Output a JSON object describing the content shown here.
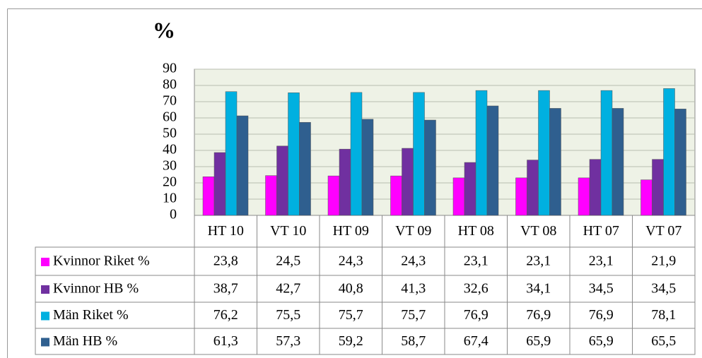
{
  "chart_data": {
    "type": "bar",
    "title": "%",
    "categories": [
      "HT 10",
      "VT 10",
      "HT 09",
      "VT 09",
      "HT 08",
      "VT 08",
      "HT 07",
      "VT 07"
    ],
    "series": [
      {
        "name": "Kvinnor Riket %",
        "color": "#ff00ff",
        "values": [
          23.8,
          24.5,
          24.3,
          24.3,
          23.1,
          23.1,
          23.1,
          21.9
        ],
        "value_labels": [
          "23,8",
          "24,5",
          "24,3",
          "24,3",
          "23,1",
          "23,1",
          "23,1",
          "21,9"
        ]
      },
      {
        "name": "Kvinnor HB %",
        "color": "#7030a0",
        "values": [
          38.7,
          42.7,
          40.8,
          41.3,
          32.6,
          34.1,
          34.5,
          34.5
        ],
        "value_labels": [
          "38,7",
          "42,7",
          "40,8",
          "41,3",
          "32,6",
          "34,1",
          "34,5",
          "34,5"
        ]
      },
      {
        "name": "Män Riket %",
        "color": "#00b0e0",
        "values": [
          76.2,
          75.5,
          75.7,
          75.7,
          76.9,
          76.9,
          76.9,
          78.1
        ],
        "value_labels": [
          "76,2",
          "75,5",
          "75,7",
          "75,7",
          "76,9",
          "76,9",
          "76,9",
          "78,1"
        ]
      },
      {
        "name": "Män HB %",
        "color": "#2f5f8f",
        "values": [
          61.3,
          57.3,
          59.2,
          58.7,
          67.4,
          65.9,
          65.9,
          65.5
        ],
        "value_labels": [
          "61,3",
          "57,3",
          "59,2",
          "58,7",
          "67,4",
          "65,9",
          "65,9",
          "65,5"
        ]
      }
    ],
    "ylim": [
      0,
      90
    ],
    "yticks": [
      0,
      10,
      20,
      30,
      40,
      50,
      60,
      70,
      80,
      90
    ],
    "grid": true
  }
}
